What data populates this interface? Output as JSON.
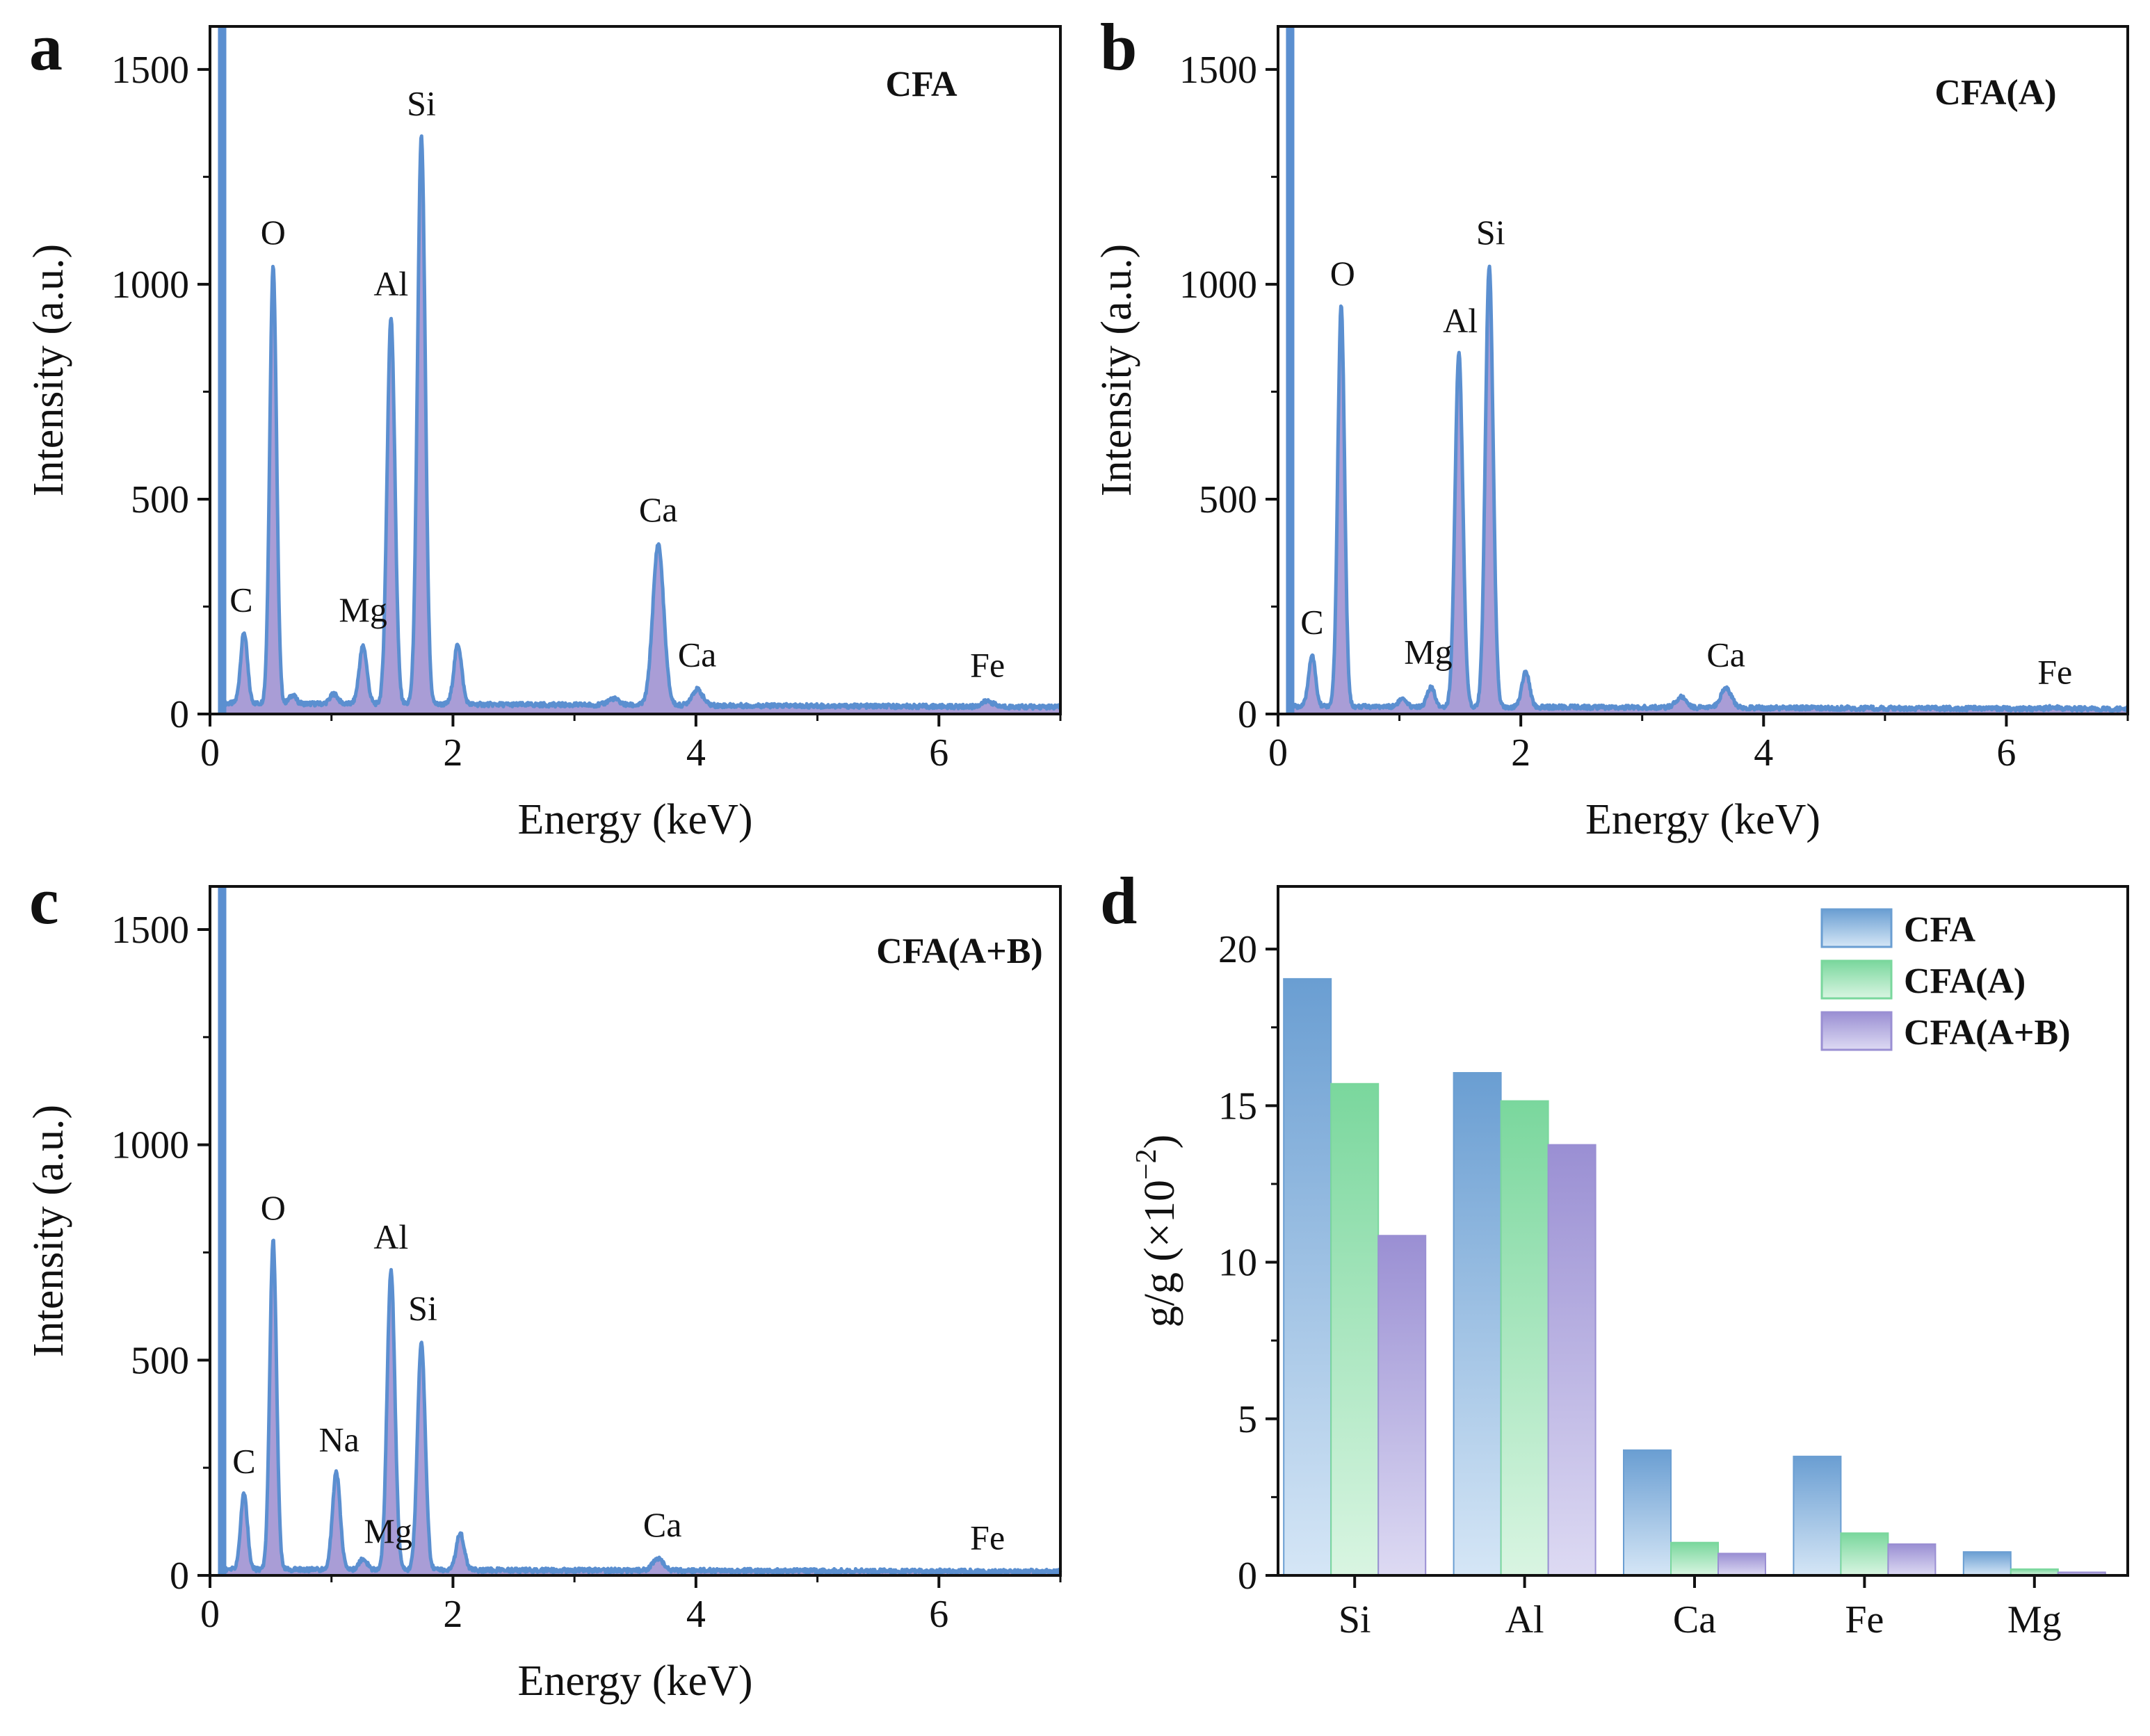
{
  "colors": {
    "spectrum_line": "#5b8fd0",
    "spectrum_fill": "#9a8ccf",
    "axis": "#111111",
    "bar_cfa_top": "#6a9ed2",
    "bar_cfa_bottom": "#d5e6f6",
    "bar_cfa_a_top": "#7ad79d",
    "bar_cfa_a_bottom": "#d9f5e2",
    "bar_cfa_ab_top": "#9a8fd3",
    "bar_cfa_ab_bottom": "#dddaf3"
  },
  "chart_data": [
    {
      "type": "line",
      "panel_letter": "a",
      "sample_label": "CFA",
      "title": "",
      "xlabel": "Energy (keV)",
      "ylabel": "Intensity (a.u.)",
      "xlim": [
        0,
        7
      ],
      "ylim": [
        0,
        1600
      ],
      "xticks": [
        0,
        2,
        4,
        6
      ],
      "yticks": [
        0,
        500,
        1000,
        1500
      ],
      "baseline": 25,
      "peaks": [
        {
          "label": "C",
          "x": 0.28,
          "y": 190,
          "show_label": true
        },
        {
          "label": "O",
          "x": 0.52,
          "y": 1045,
          "show_label": true
        },
        {
          "label": "",
          "x": 0.68,
          "y": 45,
          "show_label": false
        },
        {
          "label": "",
          "x": 1.02,
          "y": 48,
          "show_label": false
        },
        {
          "label": "Mg",
          "x": 1.26,
          "y": 160,
          "show_label": true
        },
        {
          "label": "Al",
          "x": 1.49,
          "y": 925,
          "show_label": true
        },
        {
          "label": "Si",
          "x": 1.74,
          "y": 1345,
          "show_label": true
        },
        {
          "label": "",
          "x": 2.04,
          "y": 165,
          "show_label": false
        },
        {
          "label": "",
          "x": 3.32,
          "y": 40,
          "show_label": false
        },
        {
          "label": "Ca",
          "x": 3.69,
          "y": 400,
          "show_label": true
        },
        {
          "label": "Ca",
          "x": 4.01,
          "y": 62,
          "show_label": true
        },
        {
          "label": "Fe",
          "x": 6.4,
          "y": 38,
          "show_label": true
        }
      ]
    },
    {
      "type": "line",
      "panel_letter": "b",
      "sample_label": "CFA(A)",
      "title": "",
      "xlabel": "Energy (keV)",
      "ylabel": "Intensity (a.u.)",
      "xlim": [
        0,
        7
      ],
      "ylim": [
        0,
        1600
      ],
      "xticks": [
        0,
        2,
        4,
        6
      ],
      "yticks": [
        0,
        500,
        1000,
        1500
      ],
      "baseline": 18,
      "peaks": [
        {
          "label": "C",
          "x": 0.28,
          "y": 138,
          "show_label": true
        },
        {
          "label": "O",
          "x": 0.52,
          "y": 950,
          "show_label": true
        },
        {
          "label": "",
          "x": 1.02,
          "y": 35,
          "show_label": false
        },
        {
          "label": "Mg",
          "x": 1.26,
          "y": 62,
          "show_label": true
        },
        {
          "label": "Al",
          "x": 1.49,
          "y": 840,
          "show_label": true
        },
        {
          "label": "Si",
          "x": 1.74,
          "y": 1045,
          "show_label": true
        },
        {
          "label": "",
          "x": 2.04,
          "y": 100,
          "show_label": false
        },
        {
          "label": "",
          "x": 3.32,
          "y": 42,
          "show_label": false
        },
        {
          "label": "Ca",
          "x": 3.69,
          "y": 62,
          "show_label": true
        },
        {
          "label": "Fe",
          "x": 6.4,
          "y": 22,
          "show_label": true
        }
      ]
    },
    {
      "type": "line",
      "panel_letter": "c",
      "sample_label": "CFA(A+B)",
      "title": "",
      "xlabel": "Energy (keV)",
      "ylabel": "Intensity (a.u.)",
      "xlim": [
        0,
        7
      ],
      "ylim": [
        0,
        1600
      ],
      "xticks": [
        0,
        2,
        4,
        6
      ],
      "yticks": [
        0,
        500,
        1000,
        1500
      ],
      "baseline": 14,
      "peaks": [
        {
          "label": "C",
          "x": 0.28,
          "y": 190,
          "show_label": true
        },
        {
          "label": "O",
          "x": 0.52,
          "y": 778,
          "show_label": true
        },
        {
          "label": "Na",
          "x": 1.04,
          "y": 240,
          "show_label": true
        },
        {
          "label": "Mg",
          "x": 1.26,
          "y": 40,
          "show_label": true
        },
        {
          "label": "Al",
          "x": 1.49,
          "y": 710,
          "show_label": true
        },
        {
          "label": "Si",
          "x": 1.74,
          "y": 545,
          "show_label": true
        },
        {
          "label": "",
          "x": 2.06,
          "y": 100,
          "show_label": false
        },
        {
          "label": "Ca",
          "x": 3.69,
          "y": 42,
          "show_label": true
        },
        {
          "label": "Fe",
          "x": 6.4,
          "y": 12,
          "show_label": true
        }
      ]
    },
    {
      "type": "bar",
      "panel_letter": "d",
      "title": "",
      "xlabel": "",
      "ylabel": "g/g (×10⁻²)",
      "ylabel_base": "g/g (×10",
      "ylabel_exp": "−2",
      "ylabel_close": ")",
      "ylim": [
        0,
        22
      ],
      "yticks": [
        0,
        5,
        10,
        15,
        20
      ],
      "categories": [
        "Si",
        "Al",
        "Ca",
        "Fe",
        "Mg"
      ],
      "legend_position": "top-right",
      "series": [
        {
          "name": "CFA",
          "values": [
            19.05,
            16.05,
            4.0,
            3.8,
            0.75
          ]
        },
        {
          "name": "CFA(A)",
          "values": [
            15.7,
            15.15,
            1.05,
            1.35,
            0.2
          ]
        },
        {
          "name": "CFA(A+B)",
          "values": [
            10.85,
            13.75,
            0.7,
            1.0,
            0.1
          ]
        }
      ]
    }
  ]
}
